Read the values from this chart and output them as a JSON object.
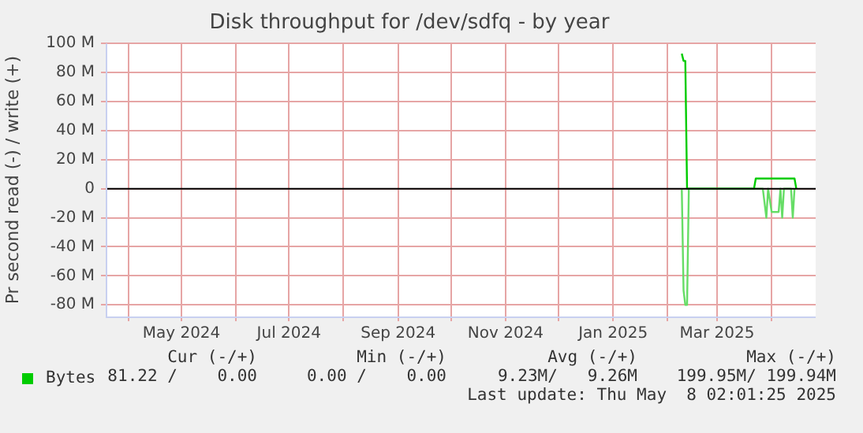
{
  "chart_data": {
    "type": "line",
    "title": "Disk throughput for /dev/sdfq - by year",
    "ylabel": "Pr second read (-) / write (+)",
    "xlim": [
      "2024-03-19",
      "2025-04-26"
    ],
    "xticks": [
      {
        "value": "2024-04-01",
        "label": null
      },
      {
        "value": "2024-05-01",
        "label": "May 2024"
      },
      {
        "value": "2024-06-01",
        "label": null
      },
      {
        "value": "2024-07-01",
        "label": "Jul 2024"
      },
      {
        "value": "2024-08-01",
        "label": null
      },
      {
        "value": "2024-09-01",
        "label": "Sep 2024"
      },
      {
        "value": "2024-10-01",
        "label": null
      },
      {
        "value": "2024-11-01",
        "label": "Nov 2024"
      },
      {
        "value": "2024-12-01",
        "label": null
      },
      {
        "value": "2025-01-01",
        "label": "Jan 2025"
      },
      {
        "value": "2025-02-01",
        "label": null
      },
      {
        "value": "2025-03-01",
        "label": "Mar 2025"
      },
      {
        "value": "2025-04-01",
        "label": null
      }
    ],
    "ylim": [
      -88,
      100
    ],
    "yticks": [
      {
        "value": -80,
        "label": "-80 M"
      },
      {
        "value": -60,
        "label": "-60 M"
      },
      {
        "value": -40,
        "label": "-40 M"
      },
      {
        "value": -20,
        "label": "-20 M"
      },
      0,
      {
        "value": 20,
        "label": "20 M"
      },
      {
        "value": 40,
        "label": "40 M"
      },
      {
        "value": 60,
        "label": "60 M"
      },
      {
        "value": 80,
        "label": "80 M"
      },
      {
        "value": 100,
        "label": "100 M"
      }
    ],
    "grid": true,
    "legend": "bottom left",
    "marker": "none",
    "line_style": "solid",
    "series": [
      {
        "name": "Bytes",
        "color": "#00cc00",
        "x": [
          "2025-02-09",
          "2025-02-10",
          "2025-02-11",
          "2025-02-12",
          "2025-03-22",
          "2025-03-23",
          "2025-04-14",
          "2025-04-15"
        ],
        "values": [
          93,
          88,
          88,
          0,
          0,
          7,
          7,
          0
        ]
      },
      {
        "color": "#66dd66",
        "x": [
          "2025-02-09",
          "2025-02-10",
          "2025-02-11",
          "2025-02-12",
          "2025-02-13",
          "2025-03-27",
          "2025-03-29",
          "2025-03-30",
          "2025-04-01",
          "2025-04-05",
          "2025-04-06",
          "2025-04-07",
          "2025-04-08",
          "2025-04-12",
          "2025-04-13",
          "2025-04-14"
        ],
        "values": [
          0,
          -70,
          -80,
          -80,
          0,
          0,
          -20,
          0,
          -16,
          -16,
          0,
          -20,
          0,
          0,
          -20,
          0
        ]
      }
    ],
    "ref_lines": [
      {
        "axis": "y",
        "value": 0,
        "color": "#000000"
      }
    ],
    "annotations": [
      "Cur (-/+)",
      "Min (-/+)",
      "Avg (-/+)",
      "Max (-/+)",
      "81.22 /    0.00",
      "0.00 /    0.00",
      "9.23M/   9.26M",
      "199.95M/ 199.94M",
      "Last update: Thu May  8 02:01:25 2025"
    ]
  }
}
